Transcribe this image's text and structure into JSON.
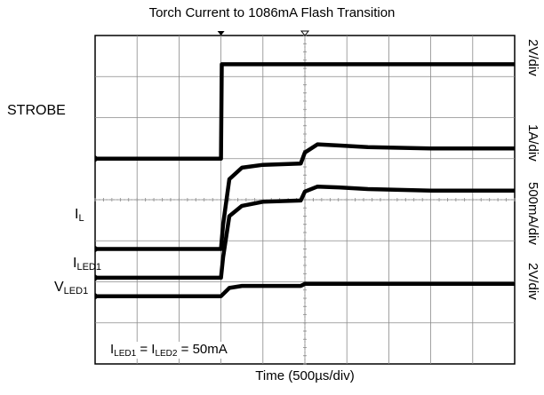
{
  "chart_data": {
    "type": "line",
    "title": "Torch Current to 1086mA Flash Transition",
    "xlabel": "Time (500µs/div)",
    "x_divisions": 10,
    "y_divisions": 8,
    "grid": true,
    "annotation": {
      "parts": [
        {
          "text": "I",
          "sub": "LED1"
        },
        {
          "text": " = I",
          "sub": "LED2"
        },
        {
          "text": " = 50mA",
          "sub": ""
        }
      ]
    },
    "series": [
      {
        "name": "STROBE",
        "label_main": "STROBE",
        "label_sub": "",
        "scale": "2V/div",
        "color": "#000000",
        "points": [
          [
            0,
            5.0
          ],
          [
            3.0,
            5.0
          ],
          [
            3.02,
            7.3
          ],
          [
            10,
            7.3
          ]
        ]
      },
      {
        "name": "IL",
        "label_main": "I",
        "label_sub": "L",
        "scale": "1A/div",
        "color": "#000000",
        "points": [
          [
            0,
            2.8
          ],
          [
            3.0,
            2.8
          ],
          [
            3.05,
            3.4
          ],
          [
            3.2,
            4.5
          ],
          [
            3.5,
            4.78
          ],
          [
            4.0,
            4.85
          ],
          [
            4.9,
            4.88
          ],
          [
            5.0,
            5.15
          ],
          [
            5.3,
            5.35
          ],
          [
            5.8,
            5.32
          ],
          [
            6.5,
            5.28
          ],
          [
            8.0,
            5.25
          ],
          [
            10,
            5.25
          ]
        ]
      },
      {
        "name": "ILED1",
        "label_main": "I",
        "label_sub": "LED1",
        "scale": "500mA/div",
        "color": "#000000",
        "points": [
          [
            0,
            2.1
          ],
          [
            3.0,
            2.1
          ],
          [
            3.05,
            2.6
          ],
          [
            3.2,
            3.6
          ],
          [
            3.5,
            3.85
          ],
          [
            4.0,
            3.95
          ],
          [
            4.9,
            3.98
          ],
          [
            5.0,
            4.2
          ],
          [
            5.3,
            4.32
          ],
          [
            5.8,
            4.3
          ],
          [
            6.5,
            4.26
          ],
          [
            8.0,
            4.22
          ],
          [
            10,
            4.22
          ]
        ]
      },
      {
        "name": "VLED1",
        "label_main": "V",
        "label_sub": "LED1",
        "scale": "2V/div",
        "color": "#000000",
        "points": [
          [
            0,
            1.65
          ],
          [
            3.0,
            1.65
          ],
          [
            3.2,
            1.85
          ],
          [
            3.5,
            1.9
          ],
          [
            4.9,
            1.9
          ],
          [
            5.0,
            1.95
          ],
          [
            10,
            1.95
          ]
        ]
      }
    ]
  }
}
